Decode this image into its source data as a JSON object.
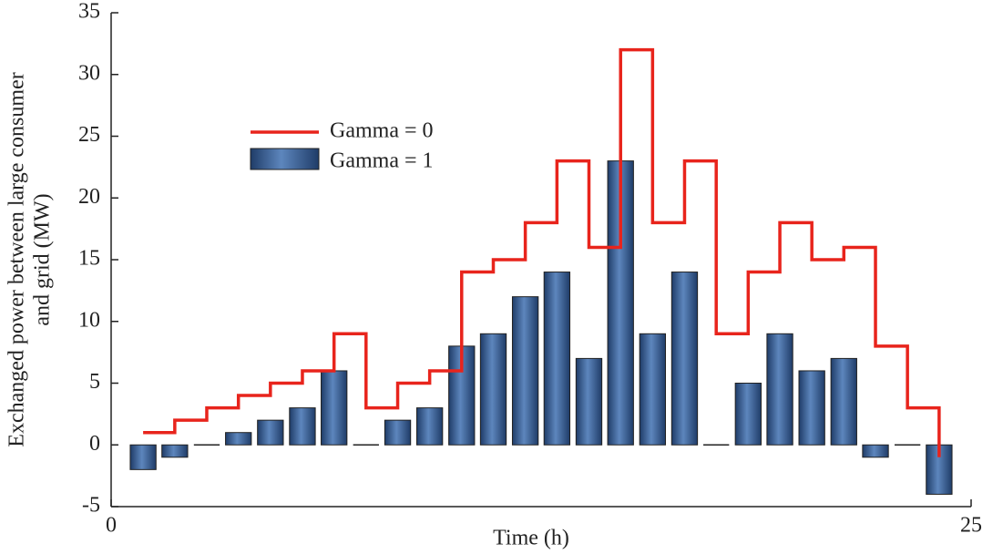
{
  "chart_data": {
    "type": "bar-step",
    "xlabel": "Time (h)",
    "ylabel": [
      "Exchanged power between large consumer",
      "and grid (MW)"
    ],
    "x": [
      0.93,
      1.85,
      2.78,
      3.7,
      4.63,
      5.56,
      6.48,
      7.41,
      8.33,
      9.26,
      10.19,
      11.11,
      12.04,
      12.96,
      13.89,
      14.81,
      15.74,
      16.67,
      17.59,
      18.52,
      19.44,
      20.37,
      21.3,
      22.22,
      23.15,
      24.07
    ],
    "series": [
      {
        "name": "Gamma = 0",
        "kind": "step",
        "color": "#e8241c",
        "values": [
          1,
          2,
          3,
          4,
          5,
          6,
          9,
          3,
          5,
          6,
          14,
          15,
          18,
          23,
          16,
          32,
          18,
          23,
          9,
          14,
          18,
          15,
          16,
          8,
          3,
          -1
        ]
      },
      {
        "name": "Gamma = 1",
        "kind": "bar",
        "color": "#3a5f95",
        "values": [
          -2,
          -1,
          0,
          1,
          2,
          3,
          6,
          0,
          2,
          3,
          8,
          9,
          12,
          14,
          7,
          23,
          9,
          14,
          0,
          5,
          9,
          6,
          7,
          -1,
          0,
          -4
        ]
      }
    ],
    "xlim": [
      0,
      25
    ],
    "xticks": [
      0,
      25
    ],
    "ylim": [
      -5,
      35
    ],
    "yticks": [
      -5,
      0,
      5,
      10,
      15,
      20,
      25,
      30,
      35
    ],
    "legend": "upper-left"
  }
}
